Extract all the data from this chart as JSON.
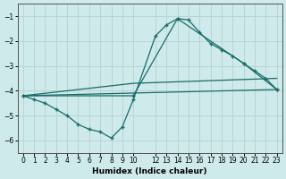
{
  "xlabel": "Humidex (Indice chaleur)",
  "background_color": "#ceeaea",
  "grid_color": "#b8d4d4",
  "line_color": "#1a6b6b",
  "xlim": [
    -0.5,
    23.5
  ],
  "ylim": [
    -6.5,
    -0.5
  ],
  "yticks": [
    -6,
    -5,
    -4,
    -3,
    -2,
    -1
  ],
  "xticks": [
    0,
    1,
    2,
    3,
    4,
    5,
    6,
    7,
    8,
    9,
    10,
    12,
    13,
    14,
    15,
    16,
    17,
    18,
    19,
    20,
    21,
    22,
    23
  ],
  "line1_x": [
    0,
    1,
    2,
    3,
    4,
    5,
    6,
    7,
    8,
    9,
    10,
    12,
    13,
    14,
    15,
    16,
    17,
    18,
    19,
    20,
    21,
    22,
    23
  ],
  "line1_y": [
    -4.2,
    -4.35,
    -4.5,
    -4.75,
    -5.0,
    -5.35,
    -5.55,
    -5.65,
    -5.9,
    -5.45,
    -4.35,
    -1.8,
    -1.35,
    -1.1,
    -1.15,
    -1.65,
    -2.1,
    -2.35,
    -2.6,
    -2.9,
    -3.2,
    -3.5,
    -3.95
  ],
  "line2_x": [
    0,
    10,
    14,
    20,
    23
  ],
  "line2_y": [
    -4.2,
    -4.2,
    -1.1,
    -2.9,
    -3.95
  ],
  "line3_x": [
    0,
    23
  ],
  "line3_y": [
    -4.2,
    -3.95
  ],
  "line4_x": [
    0,
    10,
    23
  ],
  "line4_y": [
    -4.2,
    -3.7,
    -3.5
  ]
}
